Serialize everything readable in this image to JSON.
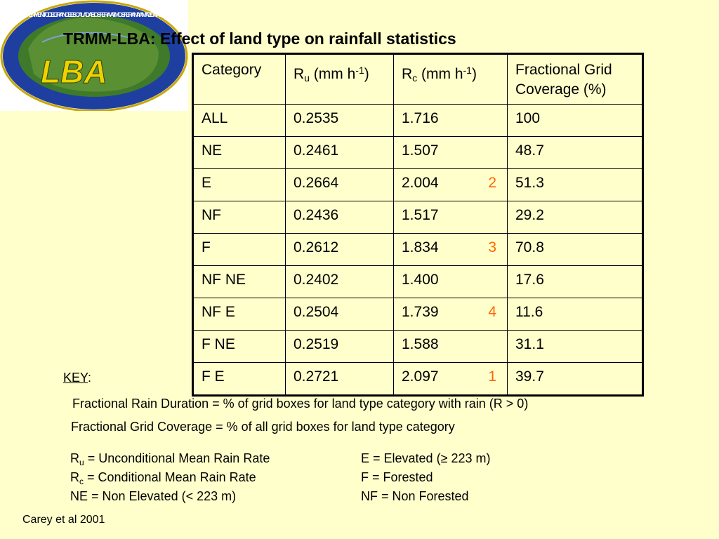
{
  "logo": {
    "label": "LBA",
    "ring_text": "EXPERIMENTO DE GRANDE ESCALA DA BIOSFERA-ATMOSFERA NA AMAZÔNIA • LBA"
  },
  "title": "TRMM-LBA: Effect of land type on rainfall statistics",
  "table": {
    "headers": {
      "category": "Category",
      "ru_base": "R",
      "ru_sub": "u",
      "ru_unit_pre": " (mm h",
      "ru_unit_sup": "-1",
      "ru_unit_post": ")",
      "rc_base": "R",
      "rc_sub": "c",
      "rc_unit_pre": " (mm h",
      "rc_unit_sup": "-1",
      "rc_unit_post": ")",
      "coverage": "Fractional Grid Coverage (%)"
    },
    "rows": [
      {
        "category": "ALL",
        "ru": "0.2535",
        "rc": "1.716",
        "rank": "",
        "coverage": "100"
      },
      {
        "category": "NE",
        "ru": "0.2461",
        "rc": "1.507",
        "rank": "",
        "coverage": "48.7"
      },
      {
        "category": "E",
        "ru": "0.2664",
        "rc": "2.004",
        "rank": "2",
        "coverage": "51.3"
      },
      {
        "category": "NF",
        "ru": "0.2436",
        "rc": "1.517",
        "rank": "",
        "coverage": "29.2"
      },
      {
        "category": "F",
        "ru": "0.2612",
        "rc": "1.834",
        "rank": "3",
        "coverage": "70.8"
      },
      {
        "category": "NF NE",
        "ru": "0.2402",
        "rc": "1.400",
        "rank": "",
        "coverage": "17.6"
      },
      {
        "category": "NF E",
        "ru": "0.2504",
        "rc": "1.739",
        "rank": "4",
        "coverage": "11.6"
      },
      {
        "category": "F NE",
        "ru": "0.2519",
        "rc": "1.588",
        "rank": "",
        "coverage": "31.1"
      },
      {
        "category": "F E",
        "ru": "0.2721",
        "rc": "2.097",
        "rank": "1",
        "coverage": "39.7"
      }
    ]
  },
  "key": {
    "heading": "KEY",
    "colon": ":",
    "line1": "Fractional Rain Duration = % of grid boxes for land type category with rain (R > 0)",
    "line2": "Fractional Grid Coverage = % of all grid boxes for land type category",
    "defs": [
      {
        "left_base": "R",
        "left_sub": "u",
        "left_rest": " = Unconditional Mean Rain Rate",
        "right": "E = Elevated (≥ 223 m)"
      },
      {
        "left_base": "R",
        "left_sub": "c",
        "left_rest": " = Conditional Mean Rain Rate",
        "right": "F = Forested"
      },
      {
        "left_base": "",
        "left_sub": "",
        "left_rest": "NE = Non Elevated (< 223 m)",
        "right": "NF = Non Forested"
      }
    ]
  },
  "citation": "Carey et al 2001",
  "colors": {
    "background": "#FFFFCC",
    "rank": "#FF6600",
    "logo_ring": "#1f3fa0",
    "logo_land": "#3f7a2a",
    "logo_text": "#f2d000"
  }
}
